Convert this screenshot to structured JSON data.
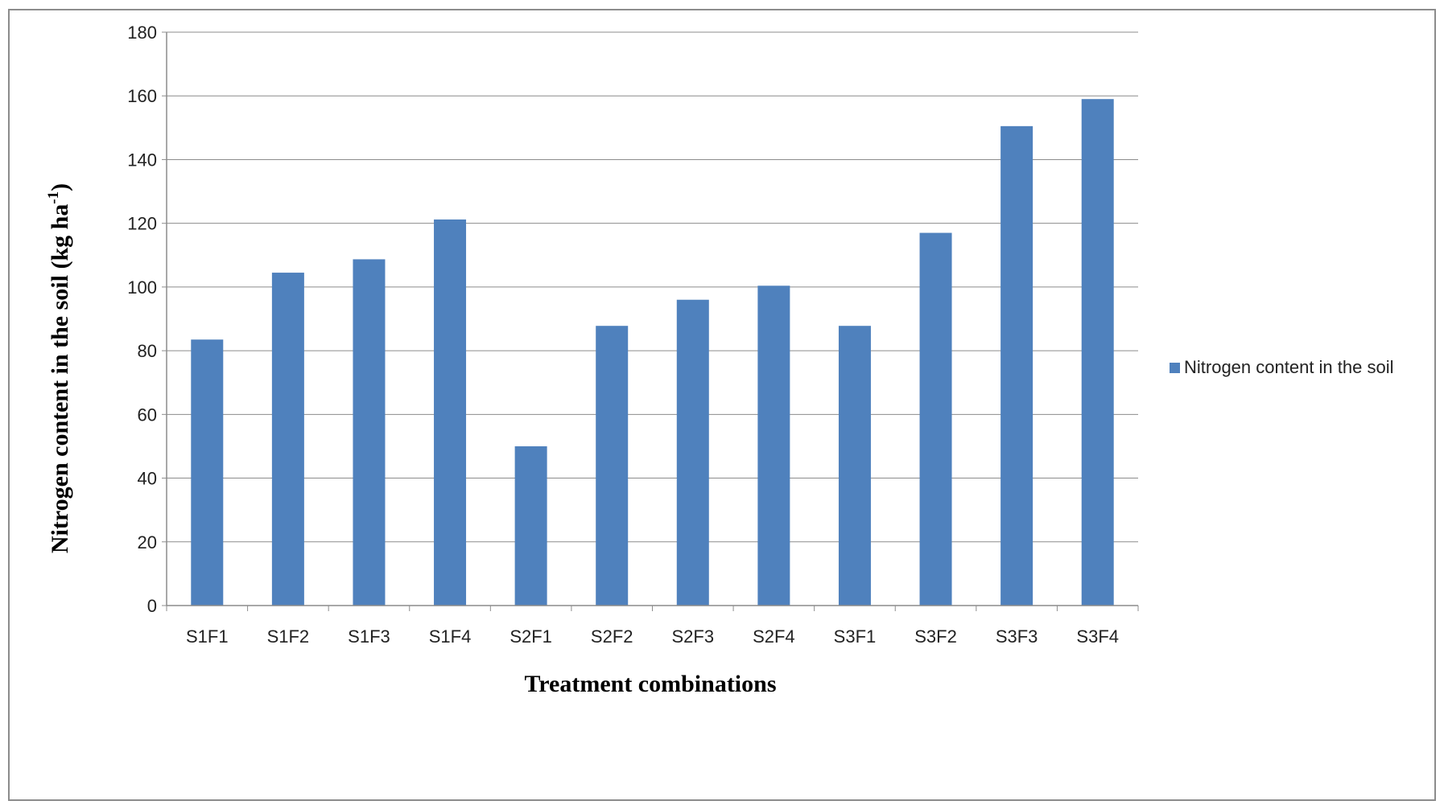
{
  "chart_data": {
    "type": "bar",
    "categories": [
      "S1F1",
      "S1F2",
      "S1F3",
      "S1F4",
      "S2F1",
      "S2F2",
      "S2F3",
      "S2F4",
      "S3F1",
      "S3F2",
      "S3F3",
      "S3F4"
    ],
    "series": [
      {
        "name": "Nitrogen content in the soil",
        "values": [
          83.5,
          104.5,
          108.7,
          121.2,
          50.0,
          87.8,
          96.0,
          100.4,
          87.8,
          117.0,
          150.5,
          159.0
        ],
        "color": "#4f81bd"
      }
    ],
    "title": "",
    "xlabel": "Treatment combinations",
    "ylabel": {
      "text": "Nitrogen content in the soil (kg ha",
      "superscript": "-1",
      "close": ")"
    },
    "ylim": [
      0,
      180
    ],
    "yticks": [
      "0",
      "20",
      "40",
      "60",
      "80",
      "100",
      "120",
      "140",
      "160",
      "180"
    ],
    "grid": true,
    "legend_position": "right"
  }
}
